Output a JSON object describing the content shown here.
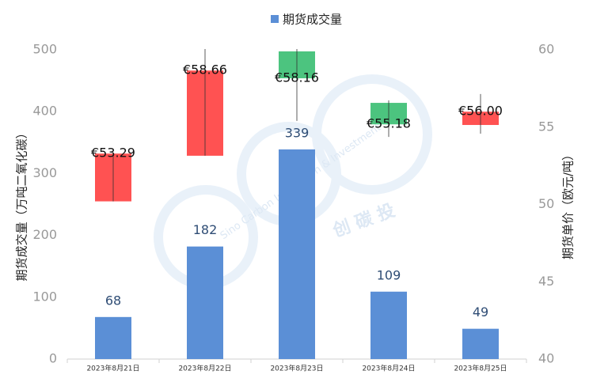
{
  "chart_data": {
    "type": "bar",
    "legend_position": "top",
    "y_label": "期货成交量（万吨二氧化碳）",
    "y2_label": "期货单价（欧元/吨）",
    "categories": [
      "2023年8月21日",
      "2023年8月22日",
      "2023年8月23日",
      "2023年8月24日",
      "2023年8月25日"
    ],
    "series": [
      {
        "name": "期货成交量",
        "color": "#5b8fd6",
        "values": [
          68,
          182,
          339,
          109,
          49
        ]
      }
    ],
    "ylim": [
      0,
      500
    ],
    "yticks": [
      0,
      100,
      200,
      300,
      400,
      500
    ],
    "y2lim": [
      40,
      60
    ],
    "y2ticks": [
      40,
      45,
      50,
      55,
      60
    ],
    "grid": false,
    "watermark": [
      "Sino Carbon Innovation & Investment",
      "创 碳 投"
    ],
    "overlay": {
      "type": "candlestick",
      "axis": "y2",
      "up_color": "#ff5252",
      "down_color": "#4cc47f",
      "open": [
        50.2,
        53.15,
        59.9,
        56.57,
        55.14
      ],
      "close": [
        53.29,
        58.66,
        58.16,
        55.18,
        56
      ],
      "high": [
        53.3,
        60.05,
        60.05,
        56.73,
        57.14
      ],
      "low": [
        50.2,
        53.15,
        55.4,
        54.37,
        54.58
      ],
      "value_labels": [
        "€53.29",
        "€58.66",
        "€58.16",
        "€55.18",
        "€56.00"
      ]
    }
  }
}
